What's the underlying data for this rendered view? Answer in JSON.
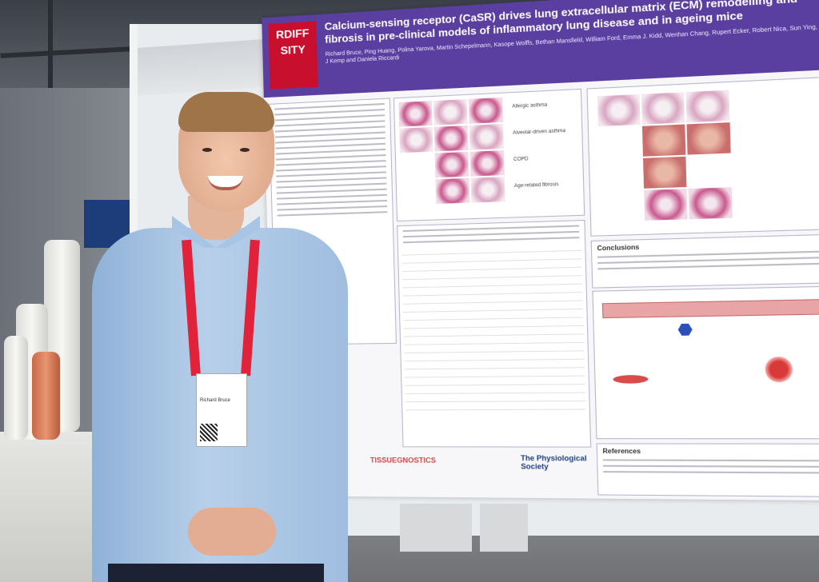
{
  "poster": {
    "logo_text": "RDIFF SITY",
    "title": "Calcium-sensing receptor (CaSR) drives lung extracellular matrix (ECM) remodelling and fibrosis in pre-clinical models of inflammatory lung disease and in ageing mice",
    "authors": "Richard Bruce, Ping Huang, Polina Yarova, Martin Schepelmann, Kasope Wolffs, Bethan Mansfield, William Ford, Emma J. Kidd, Wenhan Chang, Rupert Ecker, Robert Nica, Sun Ying, Paul J Kemp and Daniela Riccardi",
    "panel_labels": [
      "Allergic asthma",
      "Alveolar-driven asthma",
      "COPD",
      "Age-related fibrosis"
    ],
    "conclusions_heading": "Conclusions",
    "references_heading": "References",
    "sponsors": [
      "TISSUEGNOSTICS",
      "The Physiological Society"
    ]
  },
  "badge": {
    "text": "Richard Bruce"
  }
}
